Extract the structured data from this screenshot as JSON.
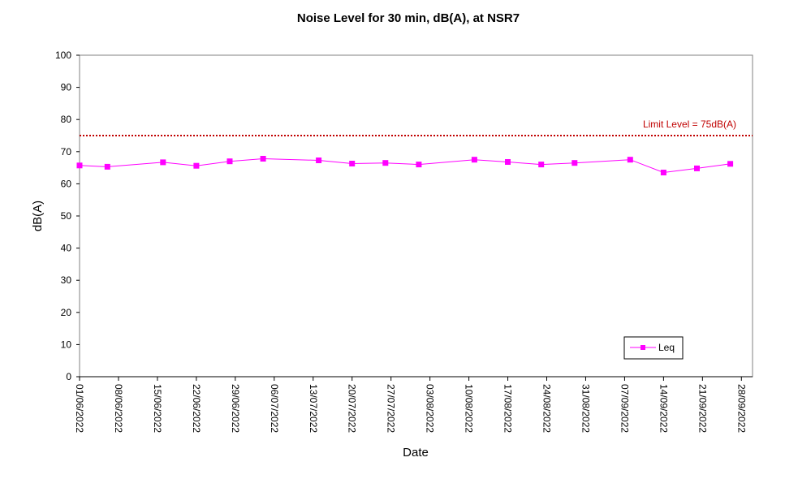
{
  "chart_data": {
    "type": "line",
    "title": "Noise Level for 30 min, dB(A), at NSR7",
    "xlabel": "Date",
    "ylabel": "dB(A)",
    "ylim": [
      0,
      100
    ],
    "yticks": [
      0,
      10,
      20,
      30,
      40,
      50,
      60,
      70,
      80,
      90,
      100
    ],
    "xlim": [
      "01/06/2022",
      "30/09/2022"
    ],
    "xticks": [
      "01/06/2022",
      "08/06/2022",
      "15/06/2022",
      "22/06/2022",
      "29/06/2022",
      "06/07/2022",
      "13/07/2022",
      "20/07/2022",
      "27/07/2022",
      "03/08/2022",
      "10/08/2022",
      "17/08/2022",
      "24/08/2022",
      "31/08/2022",
      "07/09/2022",
      "14/09/2022",
      "21/09/2022",
      "28/09/2022"
    ],
    "grid": false,
    "legend_position": "bottom-right",
    "series": [
      {
        "name": "Leq",
        "color": "#FF00FF",
        "marker": "square",
        "x": [
          "01/06/2022",
          "06/06/2022",
          "16/06/2022",
          "22/06/2022",
          "28/06/2022",
          "04/07/2022",
          "14/07/2022",
          "20/07/2022",
          "26/07/2022",
          "01/08/2022",
          "11/08/2022",
          "17/08/2022",
          "23/08/2022",
          "29/08/2022",
          "08/09/2022",
          "14/09/2022",
          "20/09/2022",
          "26/09/2022"
        ],
        "values": [
          65.7,
          65.3,
          66.7,
          65.6,
          67.0,
          67.8,
          67.3,
          66.3,
          66.5,
          66.0,
          67.5,
          66.8,
          66.0,
          66.5,
          67.5,
          63.5,
          64.8,
          66.2
        ]
      }
    ],
    "limit_line": {
      "value": 75,
      "label": "Limit Level  = 75dB(A)",
      "color": "#C00000"
    }
  }
}
